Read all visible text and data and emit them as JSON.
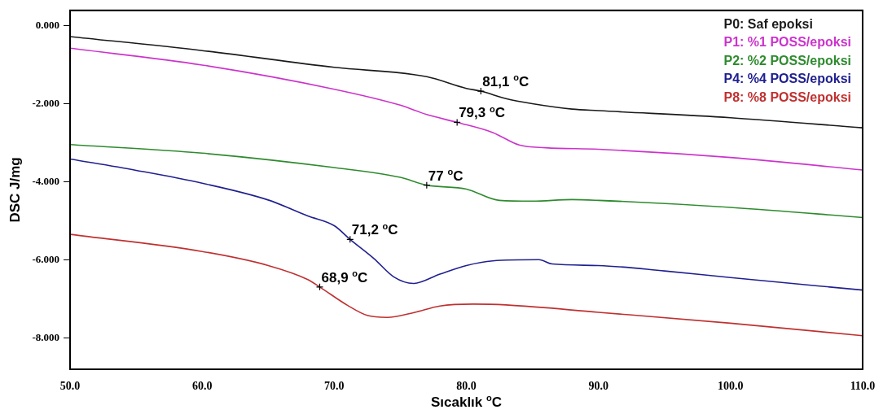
{
  "chart_data": {
    "type": "line",
    "xlabel": "Sıcaklık $^{o}$C",
    "ylabel": "DSC J/mg",
    "legend": "top right",
    "marker": "none",
    "line_style": "solid",
    "xlim": [
      50,
      110
    ],
    "xticks": [
      {
        "value": 50,
        "label": "50.0"
      },
      {
        "value": 60,
        "label": "60.0"
      },
      {
        "value": 70,
        "label": "70.0"
      },
      {
        "value": 80,
        "label": "80.0"
      },
      {
        "value": 90,
        "label": "90.0"
      },
      {
        "value": 100,
        "label": "100.0"
      },
      {
        "value": 110,
        "label": "110.0"
      }
    ],
    "ylim": [
      -8.8,
      0.4
    ],
    "yticks": [
      {
        "value": 0,
        "label": "0.000"
      },
      {
        "value": -2,
        "label": "-2.000"
      },
      {
        "value": -4,
        "label": "-4.000"
      },
      {
        "value": -6,
        "label": "-6.000"
      },
      {
        "value": -8,
        "label": "-8.000"
      }
    ],
    "series": [
      {
        "name": "P0: Saf epoksi",
        "color": "#1a1a1a",
        "x": [
          50,
          60,
          70,
          77,
          80,
          81.1,
          83,
          85,
          88,
          90,
          100,
          110
        ],
        "values": [
          -0.27,
          -0.63,
          -1.06,
          -1.3,
          -1.6,
          -1.67,
          -1.86,
          -1.99,
          -2.13,
          -2.17,
          -2.35,
          -2.61
        ]
      },
      {
        "name": "P1: %1 POSS/epoksi",
        "color": "#cc33cc",
        "x": [
          50,
          60,
          70,
          75,
          77,
          79.3,
          82,
          84,
          86,
          90,
          100,
          110
        ],
        "values": [
          -0.57,
          -1.0,
          -1.62,
          -2.03,
          -2.27,
          -2.47,
          -2.73,
          -3.05,
          -3.12,
          -3.16,
          -3.37,
          -3.69
        ]
      },
      {
        "name": "P2: %2 POSS/epoksi",
        "color": "#2e8b2e",
        "x": [
          50,
          60,
          70,
          75,
          77,
          80,
          82.5,
          85,
          88,
          90,
          100,
          110
        ],
        "values": [
          -3.04,
          -3.26,
          -3.63,
          -3.88,
          -4.08,
          -4.18,
          -4.47,
          -4.49,
          -4.45,
          -4.47,
          -4.65,
          -4.91
        ]
      },
      {
        "name": "P4: %4 POSS/epoksi",
        "color": "#202090",
        "x": [
          50,
          55,
          60,
          65,
          68,
          70,
          71.2,
          73,
          74.5,
          76,
          78,
          80,
          82,
          85.5,
          86.5,
          90,
          95,
          100,
          110
        ],
        "values": [
          -3.41,
          -3.7,
          -4.03,
          -4.46,
          -4.87,
          -5.12,
          -5.47,
          -5.96,
          -6.43,
          -6.6,
          -6.36,
          -6.14,
          -6.02,
          -5.99,
          -6.1,
          -6.14,
          -6.28,
          -6.45,
          -6.77
        ]
      },
      {
        "name": "P8: %8 POSS/epoksi",
        "color": "#c03030",
        "x": [
          50,
          60,
          65,
          68,
          68.9,
          71,
          72.5,
          74,
          76,
          78,
          80.5,
          83,
          90,
          100,
          110
        ],
        "values": [
          -5.34,
          -5.78,
          -6.14,
          -6.5,
          -6.69,
          -7.16,
          -7.42,
          -7.47,
          -7.35,
          -7.18,
          -7.13,
          -7.15,
          -7.34,
          -7.62,
          -7.94
        ]
      }
    ],
    "annotations": [
      {
        "text": "81,1 $^{o}$C",
        "x": 81.1,
        "y": -1.67
      },
      {
        "text": "79,3 $^{o}$C",
        "x": 79.3,
        "y": -2.47
      },
      {
        "text": "77 $^{o}$C",
        "x": 77,
        "y": -4.08
      },
      {
        "text": "71,2 $^{o}$C",
        "x": 71.2,
        "y": -5.47
      },
      {
        "text": "68,9 $^{o}$C",
        "x": 68.9,
        "y": -6.69
      }
    ]
  }
}
